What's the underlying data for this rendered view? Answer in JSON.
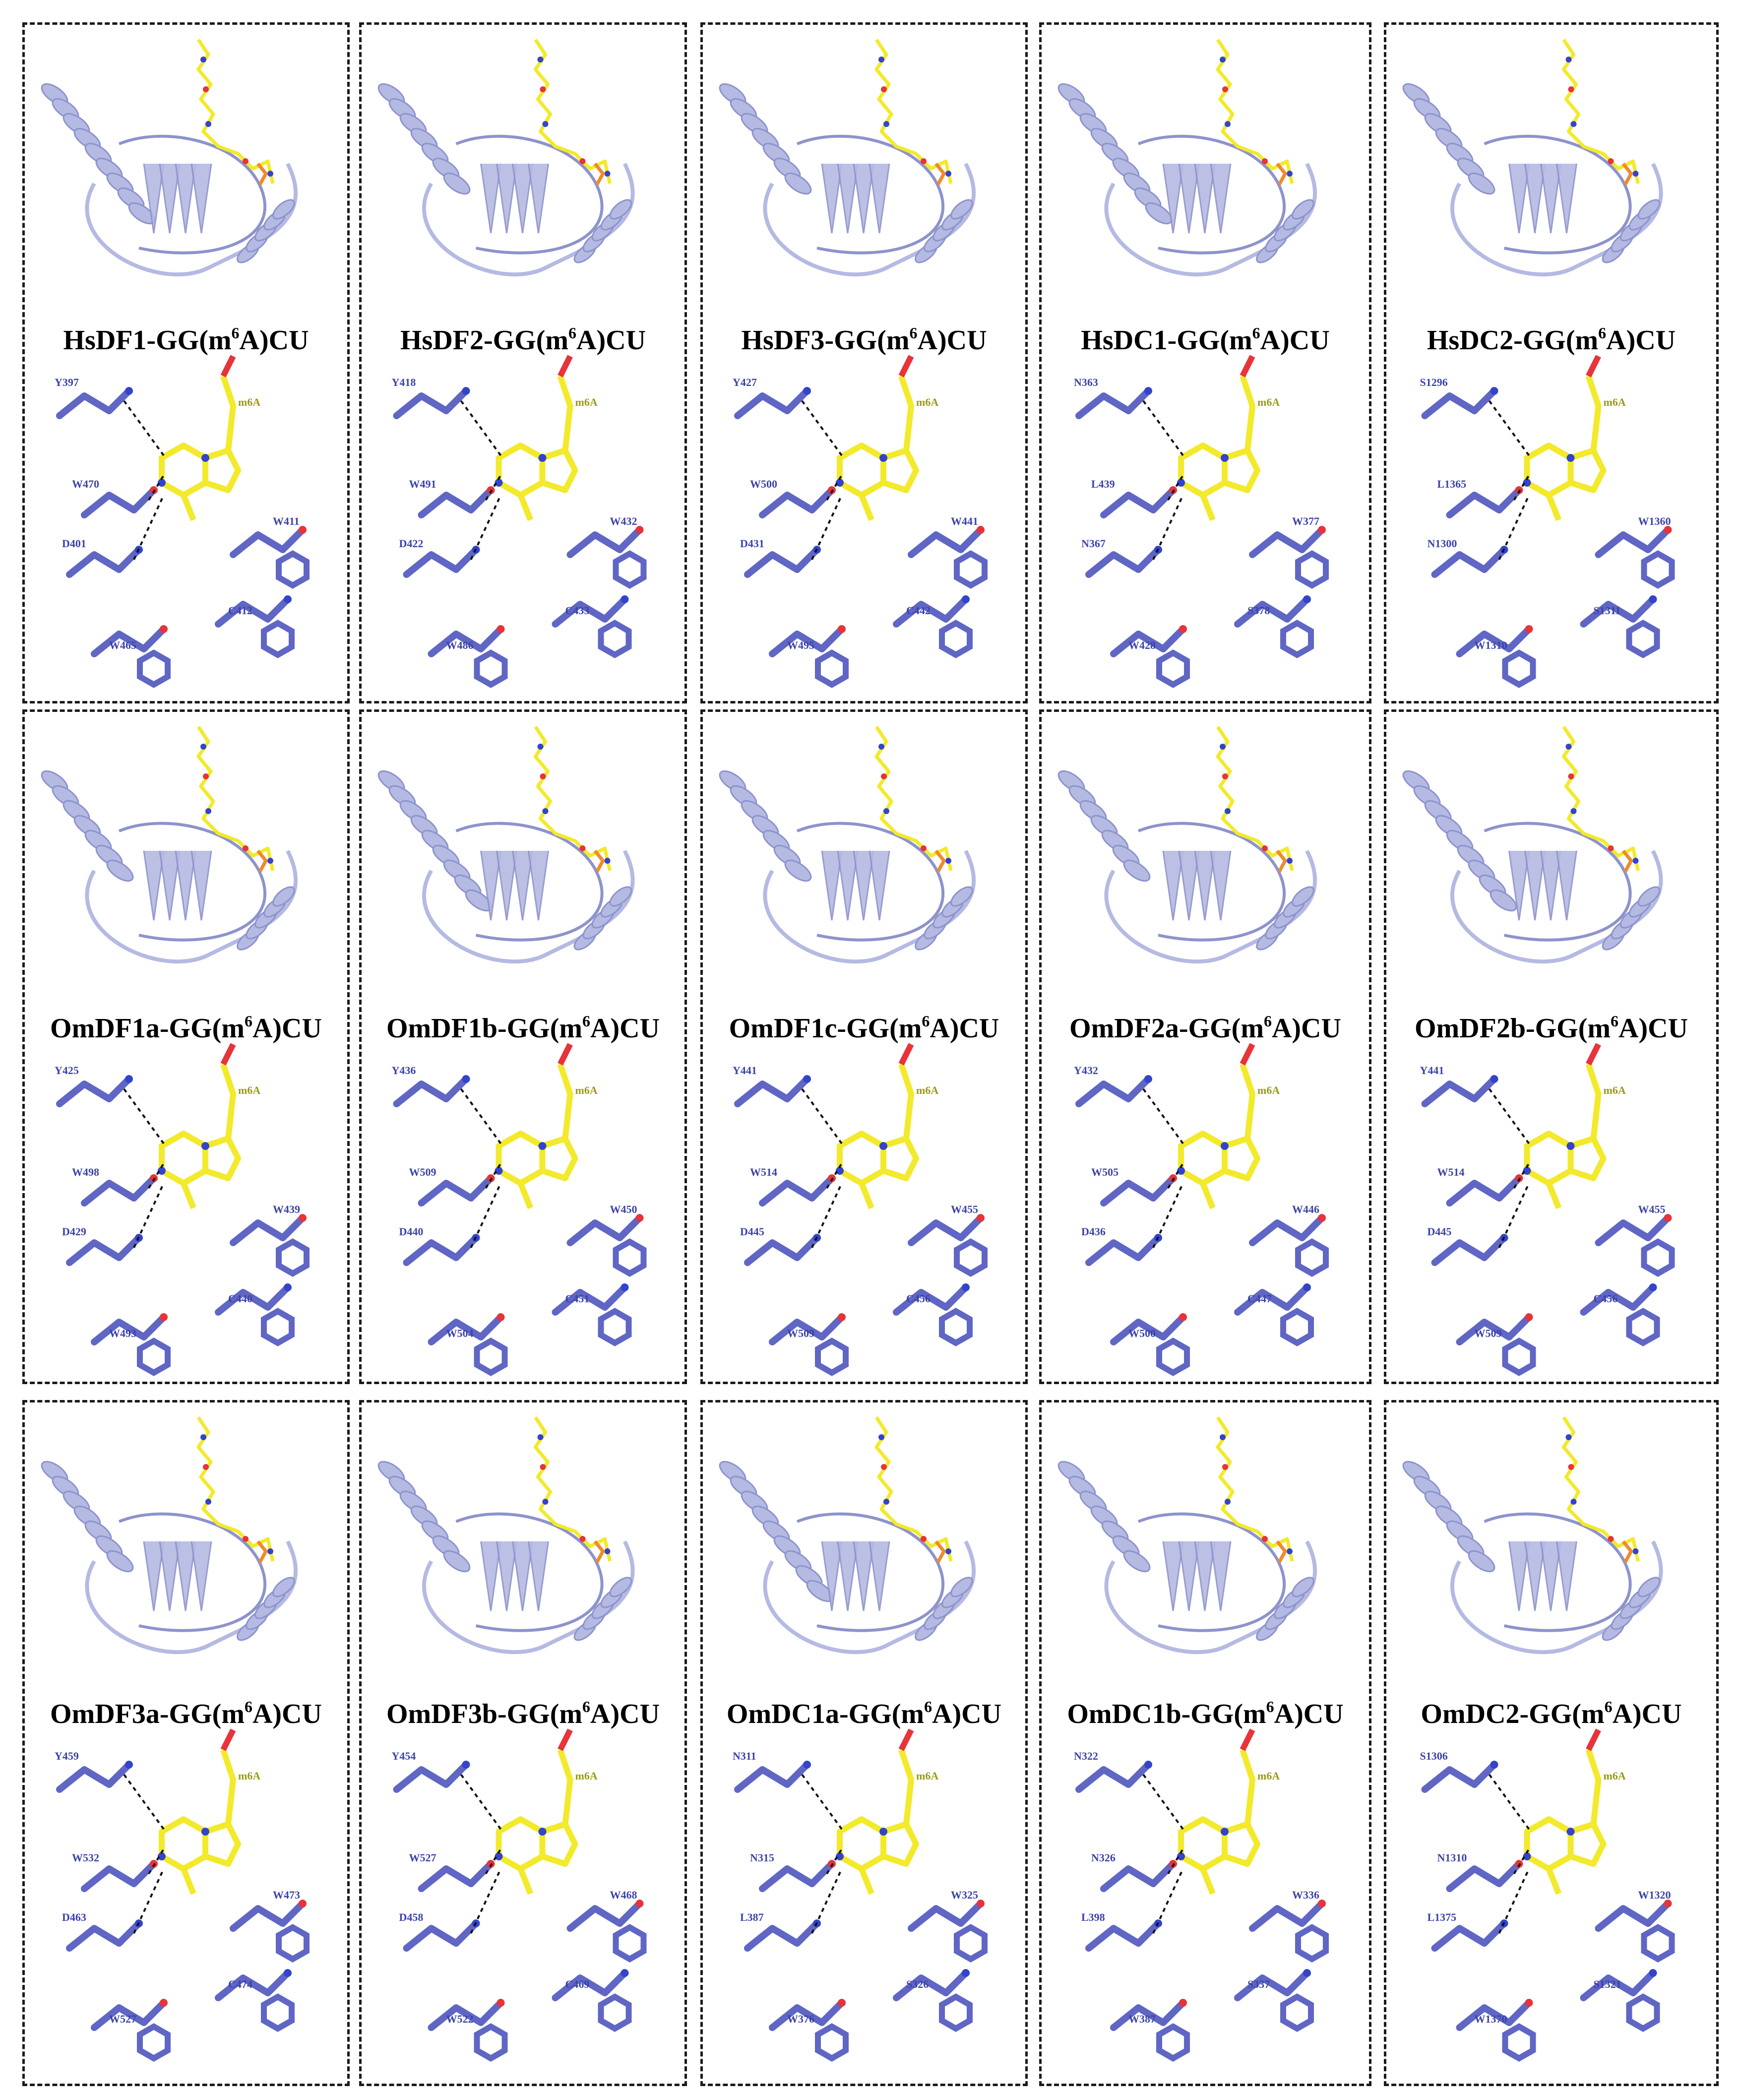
{
  "colors": {
    "protein": "#b5bae3",
    "protein_dark": "#8d93cc",
    "residue": "#5f66c4",
    "ligand": "#f2ea2a",
    "oxygen": "#e8333a",
    "nitrogen": "#3344cc",
    "phosphate": "#f08a2a",
    "label_protein": "#3b42a8",
    "label_ligand": "#9a9a10",
    "hbond": "#111111"
  },
  "panels": [
    {
      "id": "hsdf1",
      "name_prefix": "HsDF1-GG(m",
      "name_sup": "6",
      "name_suffix": "A)CU",
      "ligand_label": "m6A",
      "residues": [
        "Y397",
        "W470",
        "D401",
        "W411",
        "C412",
        "W465"
      ]
    },
    {
      "id": "hsdf2",
      "name_prefix": "HsDF2-GG(m",
      "name_sup": "6",
      "name_suffix": "A)CU",
      "ligand_label": "m6A",
      "residues": [
        "Y418",
        "W491",
        "D422",
        "W432",
        "C433",
        "W486"
      ]
    },
    {
      "id": "hsdf3",
      "name_prefix": "HsDF3-GG(m",
      "name_sup": "6",
      "name_suffix": "A)CU",
      "ligand_label": "m6A",
      "residues": [
        "Y427",
        "W500",
        "D431",
        "W441",
        "C442",
        "W495"
      ]
    },
    {
      "id": "hsdc1",
      "name_prefix": "HsDC1-GG(m",
      "name_sup": "6",
      "name_suffix": "A)CU",
      "ligand_label": "m6A",
      "residues": [
        "N363",
        "L439",
        "N367",
        "W377",
        "S378",
        "W428"
      ]
    },
    {
      "id": "hsdc2",
      "name_prefix": "HsDC2-GG(m",
      "name_sup": "6",
      "name_suffix": "A)CU",
      "ligand_label": "m6A",
      "residues": [
        "S1296",
        "L1365",
        "N1300",
        "W1360",
        "S1311",
        "W1310"
      ]
    },
    {
      "id": "omdf1a",
      "name_prefix": "OmDF1a-GG(m",
      "name_sup": "6",
      "name_suffix": "A)CU",
      "ligand_label": "m6A",
      "residues": [
        "Y425",
        "W498",
        "D429",
        "W439",
        "C440",
        "W493"
      ]
    },
    {
      "id": "omdf1b",
      "name_prefix": "OmDF1b-GG(m",
      "name_sup": "6",
      "name_suffix": "A)CU",
      "ligand_label": "m6A",
      "residues": [
        "Y436",
        "W509",
        "D440",
        "W450",
        "C451",
        "W504"
      ]
    },
    {
      "id": "omdf1c",
      "name_prefix": "OmDF1c-GG(m",
      "name_sup": "6",
      "name_suffix": "A)CU",
      "ligand_label": "m6A",
      "residues": [
        "Y441",
        "W514",
        "D445",
        "W455",
        "C456",
        "W509"
      ]
    },
    {
      "id": "omdf2a",
      "name_prefix": "OmDF2a-GG(m",
      "name_sup": "6",
      "name_suffix": "A)CU",
      "ligand_label": "m6A",
      "residues": [
        "Y432",
        "W505",
        "D436",
        "W446",
        "C447",
        "W500"
      ]
    },
    {
      "id": "omdf2b",
      "name_prefix": "OmDF2b-GG(m",
      "name_sup": "6",
      "name_suffix": "A)CU",
      "ligand_label": "m6A",
      "residues": [
        "Y441",
        "W514",
        "D445",
        "W455",
        "C456",
        "W509"
      ]
    },
    {
      "id": "omdf3a",
      "name_prefix": "OmDF3a-GG(m",
      "name_sup": "6",
      "name_suffix": "A)CU",
      "ligand_label": "m6A",
      "residues": [
        "Y459",
        "W532",
        "D463",
        "W473",
        "C474",
        "W527"
      ]
    },
    {
      "id": "omdf3b",
      "name_prefix": "OmDF3b-GG(m",
      "name_sup": "6",
      "name_suffix": "A)CU",
      "ligand_label": "m6A",
      "residues": [
        "Y454",
        "W527",
        "D458",
        "W468",
        "C469",
        "W522"
      ]
    },
    {
      "id": "omdc1a",
      "name_prefix": "OmDC1a-GG(m",
      "name_sup": "6",
      "name_suffix": "A)CU",
      "ligand_label": "m6A",
      "residues": [
        "N311",
        "N315",
        "L387",
        "W325",
        "S326",
        "W376"
      ]
    },
    {
      "id": "omdc1b",
      "name_prefix": "OmDC1b-GG(m",
      "name_sup": "6",
      "name_suffix": "A)CU",
      "ligand_label": "m6A",
      "residues": [
        "N322",
        "N326",
        "L398",
        "W336",
        "S337",
        "W387"
      ]
    },
    {
      "id": "omdc2",
      "name_prefix": "OmDC2-GG(m",
      "name_sup": "6",
      "name_suffix": "A)CU",
      "ligand_label": "m6A",
      "residues": [
        "S1306",
        "N1310",
        "L1375",
        "W1320",
        "S1321",
        "W1370"
      ]
    }
  ]
}
